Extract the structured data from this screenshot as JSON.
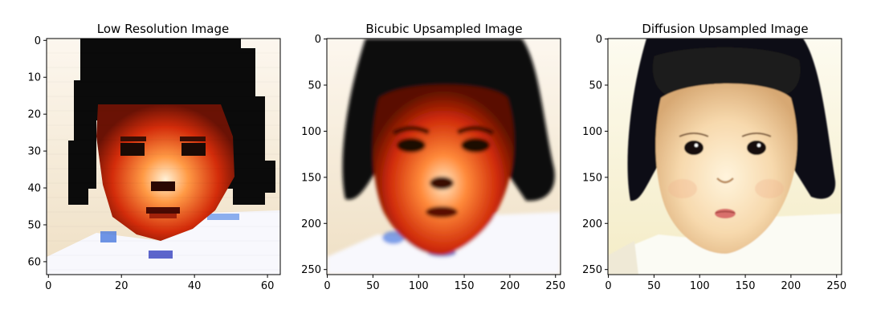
{
  "figure": {
    "panels": [
      {
        "title": "Low Resolution Image",
        "xticks": [
          "0",
          "20",
          "40",
          "60"
        ],
        "yticks": [
          "0",
          "10",
          "20",
          "30",
          "40",
          "50",
          "60"
        ],
        "image_size": 64,
        "style": "pixelated"
      },
      {
        "title": "Bicubic Upsampled Image",
        "xticks": [
          "0",
          "50",
          "100",
          "150",
          "200",
          "250"
        ],
        "yticks": [
          "0",
          "50",
          "100",
          "150",
          "200",
          "250"
        ],
        "image_size": 256,
        "style": "blurry"
      },
      {
        "title": "Diffusion Upsampled Image",
        "xticks": [
          "0",
          "50",
          "100",
          "150",
          "200",
          "250"
        ],
        "yticks": [
          "0",
          "50",
          "100",
          "150",
          "200",
          "250"
        ],
        "image_size": 256,
        "style": "natural"
      }
    ],
    "colors": {
      "hair": "#0a0a0a",
      "background_warm": "#f1e2c8",
      "shirt": "#f7f7fb",
      "skin_saturated": "#d9360a",
      "skin_natural": "#f6dcb6"
    }
  }
}
